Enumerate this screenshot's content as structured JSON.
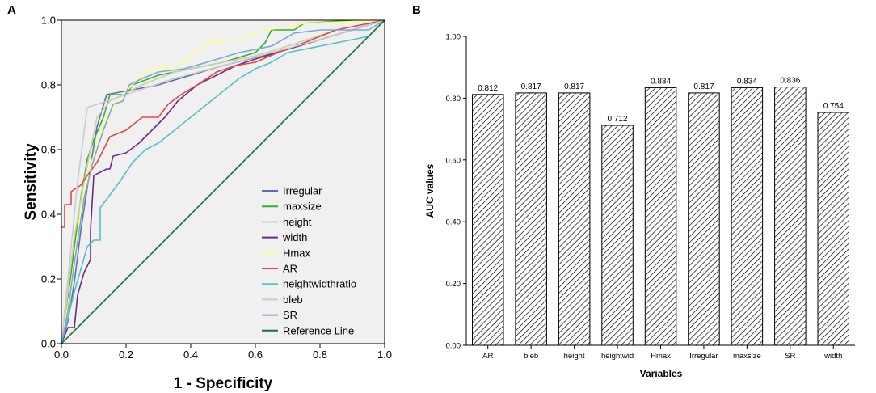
{
  "panel_a_letter": "A",
  "panel_b_letter": "B",
  "chart_data": [
    {
      "type": "line",
      "title": "",
      "xlabel": "1 - Specificity",
      "ylabel": "Sensitivity",
      "xlim": [
        0,
        1
      ],
      "ylim": [
        0,
        1
      ],
      "x_ticks": [
        "0.0",
        "0.2",
        "0.4",
        "0.6",
        "0.8",
        "1.0"
      ],
      "y_ticks": [
        "0.0",
        "0.2",
        "0.4",
        "0.6",
        "0.8",
        "1.0"
      ],
      "background": "#f0f0f0",
      "legend_position": "bottom-right",
      "series": [
        {
          "name": "Irregular",
          "color": "#5b6fae",
          "points": [
            [
              0,
              0
            ],
            [
              0.02,
              0.07
            ],
            [
              0.04,
              0.19
            ],
            [
              0.06,
              0.35
            ],
            [
              0.09,
              0.55
            ],
            [
              0.11,
              0.67
            ],
            [
              0.14,
              0.77
            ],
            [
              0.3,
              0.8
            ],
            [
              0.5,
              0.86
            ],
            [
              0.7,
              0.91
            ],
            [
              0.8,
              0.94
            ],
            [
              0.9,
              0.97
            ],
            [
              1,
              1
            ]
          ]
        },
        {
          "name": "maxsize",
          "color": "#3aaa3a",
          "points": [
            [
              0,
              0
            ],
            [
              0.02,
              0.13
            ],
            [
              0.04,
              0.3
            ],
            [
              0.06,
              0.45
            ],
            [
              0.08,
              0.57
            ],
            [
              0.1,
              0.63
            ],
            [
              0.13,
              0.7
            ],
            [
              0.15,
              0.77
            ],
            [
              0.2,
              0.77
            ],
            [
              0.22,
              0.8
            ],
            [
              0.3,
              0.83
            ],
            [
              0.4,
              0.85
            ],
            [
              0.5,
              0.87
            ],
            [
              0.6,
              0.9
            ],
            [
              0.63,
              0.93
            ],
            [
              0.65,
              0.97
            ],
            [
              0.72,
              0.97
            ],
            [
              0.75,
              0.99
            ],
            [
              0.9,
              1
            ],
            [
              1,
              1
            ]
          ]
        },
        {
          "name": "height",
          "color": "#c9d2a6",
          "points": [
            [
              0,
              0
            ],
            [
              0.02,
              0.17
            ],
            [
              0.04,
              0.33
            ],
            [
              0.07,
              0.5
            ],
            [
              0.09,
              0.6
            ],
            [
              0.11,
              0.7
            ],
            [
              0.15,
              0.75
            ],
            [
              0.25,
              0.8
            ],
            [
              0.35,
              0.84
            ],
            [
              0.5,
              0.87
            ],
            [
              0.6,
              0.89
            ],
            [
              0.7,
              0.92
            ],
            [
              0.85,
              0.97
            ],
            [
              1,
              1
            ]
          ]
        },
        {
          "name": "width",
          "color": "#6b2c86",
          "points": [
            [
              0,
              0
            ],
            [
              0.02,
              0.05
            ],
            [
              0.04,
              0.05
            ],
            [
              0.05,
              0.15
            ],
            [
              0.07,
              0.22
            ],
            [
              0.09,
              0.26
            ],
            [
              0.09,
              0.35
            ],
            [
              0.1,
              0.52
            ],
            [
              0.14,
              0.54
            ],
            [
              0.15,
              0.54
            ],
            [
              0.16,
              0.58
            ],
            [
              0.2,
              0.59
            ],
            [
              0.24,
              0.62
            ],
            [
              0.28,
              0.66
            ],
            [
              0.32,
              0.7
            ],
            [
              0.36,
              0.75
            ],
            [
              0.42,
              0.8
            ],
            [
              0.48,
              0.83
            ],
            [
              0.54,
              0.86
            ],
            [
              0.6,
              0.88
            ],
            [
              0.7,
              0.91
            ],
            [
              0.8,
              0.94
            ],
            [
              0.9,
              0.97
            ],
            [
              1,
              1
            ]
          ]
        },
        {
          "name": "Hmax",
          "color": "#ffff80",
          "points": [
            [
              0,
              0
            ],
            [
              0.02,
              0.12
            ],
            [
              0.04,
              0.26
            ],
            [
              0.06,
              0.42
            ],
            [
              0.09,
              0.55
            ],
            [
              0.12,
              0.65
            ],
            [
              0.14,
              0.7
            ],
            [
              0.18,
              0.76
            ],
            [
              0.22,
              0.8
            ],
            [
              0.26,
              0.84
            ],
            [
              0.3,
              0.85
            ],
            [
              0.36,
              0.86
            ],
            [
              0.45,
              0.93
            ],
            [
              0.55,
              0.94
            ],
            [
              0.6,
              0.96
            ],
            [
              0.64,
              0.97
            ],
            [
              0.75,
              0.99
            ],
            [
              1,
              1
            ]
          ]
        },
        {
          "name": "AR",
          "color": "#e04848",
          "points": [
            [
              0,
              0.36
            ],
            [
              0.01,
              0.36
            ],
            [
              0.01,
              0.43
            ],
            [
              0.03,
              0.43
            ],
            [
              0.03,
              0.47
            ],
            [
              0.06,
              0.49
            ],
            [
              0.08,
              0.52
            ],
            [
              0.11,
              0.56
            ],
            [
              0.13,
              0.6
            ],
            [
              0.15,
              0.64
            ],
            [
              0.2,
              0.66
            ],
            [
              0.25,
              0.7
            ],
            [
              0.3,
              0.7
            ],
            [
              0.33,
              0.74
            ],
            [
              0.37,
              0.77
            ],
            [
              0.42,
              0.8
            ],
            [
              0.48,
              0.84
            ],
            [
              0.54,
              0.86
            ],
            [
              0.6,
              0.87
            ],
            [
              0.67,
              0.9
            ],
            [
              0.75,
              0.93
            ],
            [
              0.85,
              0.97
            ],
            [
              1,
              1
            ]
          ]
        },
        {
          "name": "heightwidthratio",
          "color": "#55c0c6",
          "points": [
            [
              0,
              0
            ],
            [
              0.02,
              0.08
            ],
            [
              0.04,
              0.16
            ],
            [
              0.06,
              0.23
            ],
            [
              0.08,
              0.3
            ],
            [
              0.1,
              0.32
            ],
            [
              0.12,
              0.32
            ],
            [
              0.12,
              0.42
            ],
            [
              0.15,
              0.46
            ],
            [
              0.18,
              0.5
            ],
            [
              0.22,
              0.56
            ],
            [
              0.26,
              0.6
            ],
            [
              0.3,
              0.62
            ],
            [
              0.35,
              0.66
            ],
            [
              0.4,
              0.7
            ],
            [
              0.45,
              0.74
            ],
            [
              0.5,
              0.78
            ],
            [
              0.55,
              0.82
            ],
            [
              0.6,
              0.85
            ],
            [
              0.65,
              0.87
            ],
            [
              0.7,
              0.9
            ],
            [
              0.75,
              0.91
            ],
            [
              0.8,
              0.92
            ],
            [
              0.85,
              0.93
            ],
            [
              0.9,
              0.94
            ],
            [
              0.95,
              0.95
            ],
            [
              1,
              1
            ]
          ]
        },
        {
          "name": "bleb",
          "color": "#cccccc",
          "points": [
            [
              0,
              0
            ],
            [
              0.02,
              0.2
            ],
            [
              0.05,
              0.5
            ],
            [
              0.08,
              0.73
            ],
            [
              0.2,
              0.77
            ],
            [
              0.35,
              0.82
            ],
            [
              0.5,
              0.86
            ],
            [
              0.65,
              0.9
            ],
            [
              0.8,
              0.94
            ],
            [
              0.9,
              0.97
            ],
            [
              1,
              1
            ]
          ]
        },
        {
          "name": "SR",
          "color": "#7aa8d4",
          "points": [
            [
              0,
              0
            ],
            [
              0.02,
              0.1
            ],
            [
              0.04,
              0.25
            ],
            [
              0.07,
              0.45
            ],
            [
              0.1,
              0.57
            ],
            [
              0.13,
              0.66
            ],
            [
              0.16,
              0.74
            ],
            [
              0.19,
              0.75
            ],
            [
              0.21,
              0.8
            ],
            [
              0.25,
              0.82
            ],
            [
              0.3,
              0.84
            ],
            [
              0.38,
              0.85
            ],
            [
              0.45,
              0.87
            ],
            [
              0.55,
              0.9
            ],
            [
              0.65,
              0.92
            ],
            [
              0.72,
              0.96
            ],
            [
              0.8,
              0.97
            ],
            [
              0.9,
              0.97
            ],
            [
              0.92,
              0.97
            ],
            [
              0.95,
              0.97
            ],
            [
              1,
              1
            ]
          ]
        },
        {
          "name": "Reference Line",
          "color": "#1e6e3c",
          "points": [
            [
              0,
              0
            ],
            [
              1,
              1
            ]
          ]
        }
      ]
    },
    {
      "type": "bar",
      "title": "",
      "xlabel": "Variables",
      "ylabel": "AUC values",
      "ylim": [
        0,
        1
      ],
      "y_ticks": [
        "0.00",
        "0.20",
        "0.40",
        "0.60",
        "0.80",
        "1.00"
      ],
      "categories": [
        "AR",
        "bleb",
        "height",
        "heightwid",
        "Hmax",
        "Irregular",
        "maxsize",
        "SR",
        "width"
      ],
      "values": [
        0.812,
        0.817,
        0.817,
        0.712,
        0.834,
        0.817,
        0.834,
        0.836,
        0.754
      ],
      "value_labels": [
        "0.812",
        "0.817",
        "0.817",
        "0.712",
        "0.834",
        "0.817",
        "0.834",
        "0.836",
        "0.754"
      ],
      "bar_fill": "hatched"
    }
  ]
}
